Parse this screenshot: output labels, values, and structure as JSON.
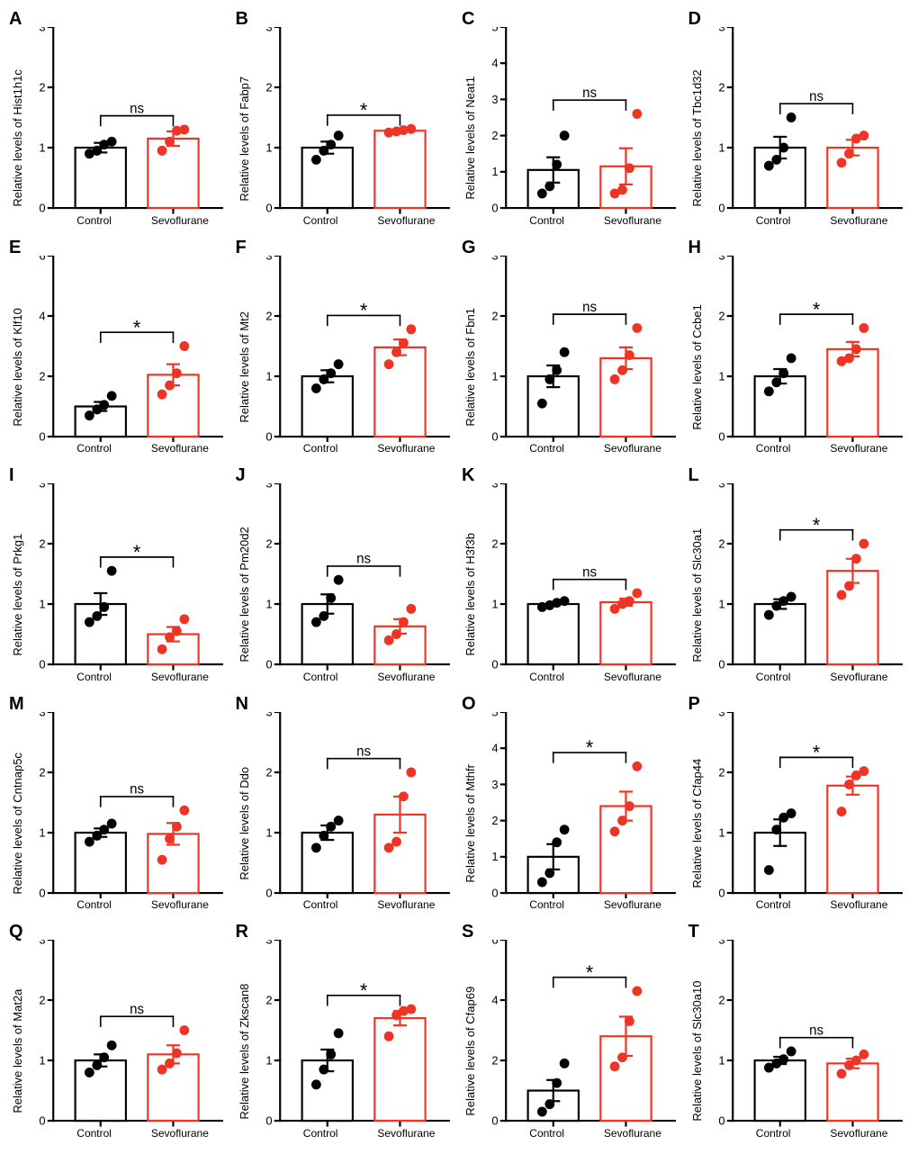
{
  "layout": {
    "cols": 4,
    "rows": 5,
    "background_color": "#ffffff",
    "axis_color": "#000000",
    "tick_len": 5,
    "marker_radius": 5,
    "bar_stroke_width": 2,
    "bracket_stroke_width": 1.5,
    "font": {
      "family": "Arial",
      "panel_letter_pt": 20,
      "ylabel_pt": 13,
      "ticklabel_pt": 12,
      "xlabel_pt": 12,
      "sig_pt": 14
    }
  },
  "categories": [
    "Control",
    "Sevoflurane"
  ],
  "colors": {
    "control_stroke": "#000000",
    "control_fill": "#ffffff",
    "control_point": "#000000",
    "sevo_stroke": "#ee3424",
    "sevo_fill": "#ffffff",
    "sevo_point": "#ee3424"
  },
  "panels": [
    {
      "letter": "A",
      "gene": "Hist1h1c",
      "ymax": 3,
      "ystep": 1,
      "sig": "ns",
      "control": {
        "mean": 1.0,
        "sem": 0.08,
        "points": [
          0.9,
          0.95,
          1.05,
          1.1
        ]
      },
      "sevo": {
        "mean": 1.15,
        "sem": 0.12,
        "points": [
          0.95,
          1.1,
          1.28,
          1.3
        ]
      }
    },
    {
      "letter": "B",
      "gene": "Fabp7",
      "ymax": 3,
      "ystep": 1,
      "sig": "*",
      "control": {
        "mean": 1.0,
        "sem": 0.1,
        "points": [
          0.8,
          0.95,
          1.05,
          1.2
        ]
      },
      "sevo": {
        "mean": 1.28,
        "sem": 0.03,
        "points": [
          1.25,
          1.27,
          1.29,
          1.31
        ]
      }
    },
    {
      "letter": "C",
      "gene": "Neat1",
      "ymax": 5,
      "ystep": 1,
      "sig": "ns",
      "control": {
        "mean": 1.05,
        "sem": 0.35,
        "points": [
          0.4,
          0.6,
          1.2,
          2.0
        ]
      },
      "sevo": {
        "mean": 1.15,
        "sem": 0.5,
        "points": [
          0.4,
          0.5,
          1.1,
          2.6
        ]
      }
    },
    {
      "letter": "D",
      "gene": "Tbc1d32",
      "ymax": 3,
      "ystep": 1,
      "sig": "ns",
      "control": {
        "mean": 1.0,
        "sem": 0.18,
        "points": [
          0.7,
          0.8,
          1.0,
          1.5
        ]
      },
      "sevo": {
        "mean": 1.0,
        "sem": 0.13,
        "points": [
          0.75,
          0.9,
          1.15,
          1.2
        ]
      }
    },
    {
      "letter": "E",
      "gene": "Klf10",
      "ymax": 6,
      "ystep": 2,
      "sig": "*",
      "control": {
        "mean": 1.0,
        "sem": 0.15,
        "points": [
          0.7,
          0.9,
          1.05,
          1.35
        ]
      },
      "sevo": {
        "mean": 2.05,
        "sem": 0.35,
        "points": [
          1.4,
          1.7,
          2.1,
          3.0
        ]
      }
    },
    {
      "letter": "F",
      "gene": "Mt2",
      "ymax": 3,
      "ystep": 1,
      "sig": "*",
      "control": {
        "mean": 1.0,
        "sem": 0.1,
        "points": [
          0.8,
          0.95,
          1.05,
          1.2
        ]
      },
      "sevo": {
        "mean": 1.48,
        "sem": 0.13,
        "points": [
          1.2,
          1.4,
          1.55,
          1.78
        ]
      }
    },
    {
      "letter": "G",
      "gene": "Fbn1",
      "ymax": 3,
      "ystep": 1,
      "sig": "ns",
      "control": {
        "mean": 1.0,
        "sem": 0.18,
        "points": [
          0.55,
          0.95,
          1.1,
          1.4
        ]
      },
      "sevo": {
        "mean": 1.3,
        "sem": 0.18,
        "points": [
          0.95,
          1.1,
          1.35,
          1.8
        ]
      }
    },
    {
      "letter": "H",
      "gene": "Ccbe1",
      "ymax": 3,
      "ystep": 1,
      "sig": "*",
      "control": {
        "mean": 1.0,
        "sem": 0.12,
        "points": [
          0.75,
          0.9,
          1.05,
          1.3
        ]
      },
      "sevo": {
        "mean": 1.45,
        "sem": 0.12,
        "points": [
          1.25,
          1.3,
          1.45,
          1.8
        ]
      }
    },
    {
      "letter": "I",
      "gene": "Prkg1",
      "ymax": 3,
      "ystep": 1,
      "sig": "*",
      "control": {
        "mean": 1.0,
        "sem": 0.18,
        "points": [
          0.7,
          0.8,
          0.95,
          1.55
        ]
      },
      "sevo": {
        "mean": 0.5,
        "sem": 0.12,
        "points": [
          0.25,
          0.45,
          0.55,
          0.75
        ]
      }
    },
    {
      "letter": "J",
      "gene": "Pm20d2",
      "ymax": 3,
      "ystep": 1,
      "sig": "ns",
      "control": {
        "mean": 1.0,
        "sem": 0.16,
        "points": [
          0.7,
          0.8,
          1.1,
          1.4
        ]
      },
      "sevo": {
        "mean": 0.63,
        "sem": 0.12,
        "points": [
          0.4,
          0.5,
          0.7,
          0.92
        ]
      }
    },
    {
      "letter": "K",
      "gene": "H3f3b",
      "ymax": 3,
      "ystep": 1,
      "sig": "ns",
      "control": {
        "mean": 1.0,
        "sem": 0.03,
        "points": [
          0.95,
          0.98,
          1.02,
          1.05
        ]
      },
      "sevo": {
        "mean": 1.03,
        "sem": 0.06,
        "points": [
          0.92,
          1.0,
          1.05,
          1.18
        ]
      }
    },
    {
      "letter": "L",
      "gene": "Slc30a1",
      "ymax": 3,
      "ystep": 1,
      "sig": "*",
      "control": {
        "mean": 1.0,
        "sem": 0.08,
        "points": [
          0.82,
          0.97,
          1.05,
          1.12
        ]
      },
      "sevo": {
        "mean": 1.55,
        "sem": 0.2,
        "points": [
          1.15,
          1.3,
          1.75,
          2.0
        ]
      }
    },
    {
      "letter": "M",
      "gene": "Cntnap5c",
      "ymax": 3,
      "ystep": 1,
      "sig": "ns",
      "control": {
        "mean": 1.0,
        "sem": 0.07,
        "points": [
          0.85,
          0.95,
          1.05,
          1.15
        ]
      },
      "sevo": {
        "mean": 0.98,
        "sem": 0.18,
        "points": [
          0.55,
          0.9,
          1.1,
          1.37
        ]
      }
    },
    {
      "letter": "N",
      "gene": "Ddo",
      "ymax": 3,
      "ystep": 1,
      "sig": "ns",
      "control": {
        "mean": 1.0,
        "sem": 0.12,
        "points": [
          0.75,
          0.95,
          1.1,
          1.2
        ]
      },
      "sevo": {
        "mean": 1.3,
        "sem": 0.3,
        "points": [
          0.75,
          0.85,
          1.6,
          2.0
        ]
      }
    },
    {
      "letter": "O",
      "gene": "Mthfr",
      "ymax": 5,
      "ystep": 1,
      "sig": "*",
      "control": {
        "mean": 1.0,
        "sem": 0.35,
        "points": [
          0.3,
          0.55,
          1.4,
          1.75
        ]
      },
      "sevo": {
        "mean": 2.4,
        "sem": 0.4,
        "points": [
          1.7,
          2.0,
          2.4,
          3.5
        ]
      }
    },
    {
      "letter": "P",
      "gene": "Cfap44",
      "ymax": 3,
      "ystep": 1,
      "sig": "*",
      "control": {
        "mean": 1.0,
        "sem": 0.22,
        "points": [
          0.38,
          1.05,
          1.25,
          1.32
        ]
      },
      "sevo": {
        "mean": 1.78,
        "sem": 0.15,
        "points": [
          1.35,
          1.8,
          1.95,
          2.02
        ]
      }
    },
    {
      "letter": "Q",
      "gene": "Mat2a",
      "ymax": 3,
      "ystep": 1,
      "sig": "ns",
      "control": {
        "mean": 1.0,
        "sem": 0.1,
        "points": [
          0.8,
          0.92,
          1.05,
          1.25
        ]
      },
      "sevo": {
        "mean": 1.1,
        "sem": 0.15,
        "points": [
          0.85,
          0.95,
          1.12,
          1.5
        ]
      }
    },
    {
      "letter": "R",
      "gene": "Zkscan8",
      "ymax": 3,
      "ystep": 1,
      "sig": "*",
      "control": {
        "mean": 1.0,
        "sem": 0.18,
        "points": [
          0.6,
          0.85,
          1.1,
          1.45
        ]
      },
      "sevo": {
        "mean": 1.7,
        "sem": 0.12,
        "points": [
          1.4,
          1.75,
          1.82,
          1.85
        ]
      }
    },
    {
      "letter": "S",
      "gene": "Cfap69",
      "ymax": 6,
      "ystep": 2,
      "sig": "*",
      "control": {
        "mean": 1.0,
        "sem": 0.35,
        "points": [
          0.3,
          0.55,
          1.25,
          1.9
        ]
      },
      "sevo": {
        "mean": 2.8,
        "sem": 0.65,
        "points": [
          1.8,
          2.1,
          3.3,
          4.3
        ]
      }
    },
    {
      "letter": "T",
      "gene": "Slc30a10",
      "ymax": 3,
      "ystep": 1,
      "sig": "ns",
      "control": {
        "mean": 1.0,
        "sem": 0.06,
        "points": [
          0.88,
          0.95,
          1.02,
          1.15
        ]
      },
      "sevo": {
        "mean": 0.95,
        "sem": 0.08,
        "points": [
          0.78,
          0.92,
          1.0,
          1.1
        ]
      }
    }
  ]
}
